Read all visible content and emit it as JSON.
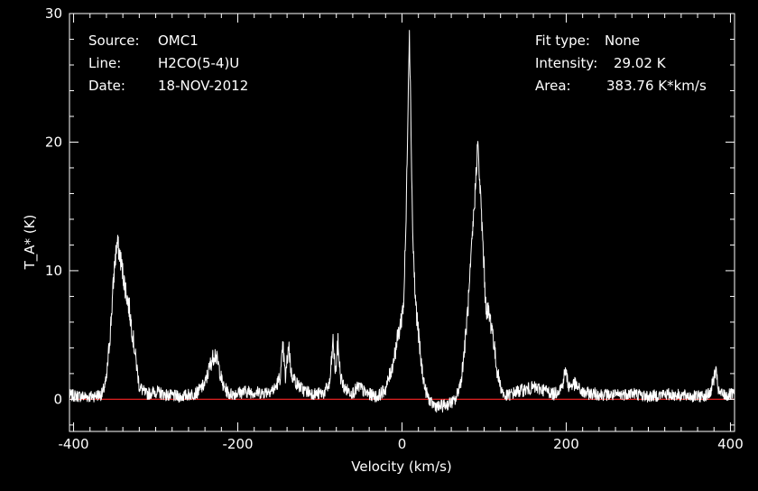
{
  "colors": {
    "background": "#000000",
    "spectrum": "#ffffff",
    "baseline": "#e02020",
    "frame": "#ffffff"
  },
  "info_left": [
    {
      "label": "Source:",
      "value": "OMC1"
    },
    {
      "label": "Line:",
      "value": "H2CO(5-4)U"
    },
    {
      "label": "Date:",
      "value": "18-NOV-2012"
    }
  ],
  "info_right": [
    {
      "label": "Fit type:",
      "value": "None"
    },
    {
      "label": "Intensity:",
      "value": "29.02 K"
    },
    {
      "label": "Area:",
      "value": "383.76 K*km/s"
    }
  ],
  "chart_data": {
    "type": "line",
    "xlabel": "Velocity (km/s)",
    "ylabel": "T_A* (K)",
    "xlim": [
      -405,
      405
    ],
    "ylim": [
      -2.5,
      30
    ],
    "xticks": [
      -400,
      -200,
      0,
      200,
      400
    ],
    "xtick_labels": [
      "-400",
      "-200",
      "0",
      "200",
      "400"
    ],
    "yticks": [
      0,
      10,
      20,
      30
    ],
    "ytick_labels": [
      "0",
      "10",
      "20",
      "30"
    ],
    "baseline_y": 0,
    "grid": false,
    "series": [
      {
        "points": [
          [
            -405,
            0.3
          ],
          [
            -380,
            0.2
          ],
          [
            -365,
            0.4
          ],
          [
            -360,
            1.5
          ],
          [
            -355,
            5.5
          ],
          [
            -350,
            10.5
          ],
          [
            -347,
            12.2
          ],
          [
            -343,
            11.0
          ],
          [
            -338,
            9.0
          ],
          [
            -332,
            7.0
          ],
          [
            -326,
            4.0
          ],
          [
            -320,
            1.0
          ],
          [
            -312,
            0.4
          ],
          [
            -300,
            0.6
          ],
          [
            -285,
            0.3
          ],
          [
            -270,
            0.2
          ],
          [
            -250,
            0.5
          ],
          [
            -240,
            1.2
          ],
          [
            -233,
            2.8
          ],
          [
            -228,
            3.6
          ],
          [
            -224,
            2.8
          ],
          [
            -218,
            1.0
          ],
          [
            -210,
            0.4
          ],
          [
            -190,
            0.6
          ],
          [
            -170,
            0.5
          ],
          [
            -155,
            0.8
          ],
          [
            -148,
            1.8
          ],
          [
            -145,
            4.1
          ],
          [
            -142,
            1.6
          ],
          [
            -138,
            4.3
          ],
          [
            -135,
            2.0
          ],
          [
            -128,
            1.2
          ],
          [
            -120,
            0.7
          ],
          [
            -105,
            0.4
          ],
          [
            -95,
            0.5
          ],
          [
            -88,
            1.2
          ],
          [
            -84,
            4.5
          ],
          [
            -81,
            2.0
          ],
          [
            -78,
            4.4
          ],
          [
            -75,
            1.8
          ],
          [
            -70,
            0.8
          ],
          [
            -60,
            0.5
          ],
          [
            -52,
            1.0
          ],
          [
            -45,
            0.5
          ],
          [
            -30,
            0.2
          ],
          [
            -20,
            0.8
          ],
          [
            -12,
            2.5
          ],
          [
            -6,
            4.5
          ],
          [
            -2,
            5.8
          ],
          [
            2,
            7.5
          ],
          [
            5,
            14.0
          ],
          [
            7,
            22.0
          ],
          [
            9,
            29.0
          ],
          [
            11,
            21.0
          ],
          [
            13,
            13.0
          ],
          [
            16,
            8.0
          ],
          [
            19,
            5.8
          ],
          [
            23,
            3.0
          ],
          [
            28,
            0.8
          ],
          [
            35,
            -0.3
          ],
          [
            45,
            -0.6
          ],
          [
            55,
            -0.4
          ],
          [
            65,
            -0.1
          ],
          [
            72,
            1.5
          ],
          [
            77,
            4.5
          ],
          [
            82,
            8.5
          ],
          [
            86,
            13.0
          ],
          [
            89,
            16.0
          ],
          [
            92,
            20.0
          ],
          [
            95,
            16.5
          ],
          [
            99,
            11.5
          ],
          [
            102,
            7.3
          ],
          [
            106,
            6.5
          ],
          [
            110,
            5.5
          ],
          [
            115,
            2.5
          ],
          [
            120,
            1.0
          ],
          [
            125,
            0.2
          ],
          [
            140,
            0.6
          ],
          [
            160,
            0.9
          ],
          [
            175,
            0.7
          ],
          [
            185,
            0.4
          ],
          [
            195,
            1.0
          ],
          [
            199,
            2.3
          ],
          [
            203,
            1.0
          ],
          [
            210,
            1.2
          ],
          [
            220,
            0.5
          ],
          [
            240,
            0.4
          ],
          [
            260,
            0.3
          ],
          [
            280,
            0.5
          ],
          [
            300,
            0.2
          ],
          [
            320,
            0.4
          ],
          [
            340,
            0.3
          ],
          [
            360,
            0.2
          ],
          [
            375,
            0.4
          ],
          [
            382,
            2.2
          ],
          [
            386,
            0.5
          ],
          [
            395,
            0.3
          ],
          [
            405,
            0.4
          ]
        ]
      }
    ]
  }
}
